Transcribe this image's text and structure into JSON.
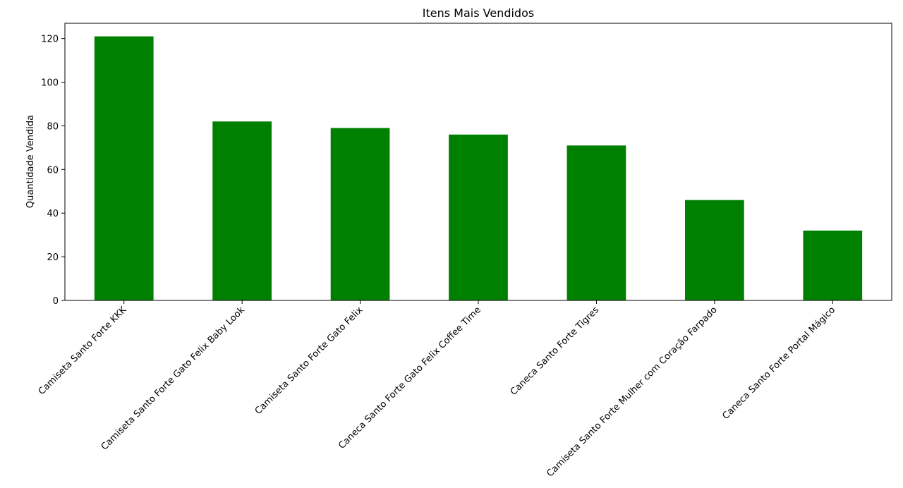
{
  "chart_data": {
    "type": "bar",
    "title": "Itens Mais Vendidos",
    "xlabel": "",
    "ylabel": "Quantidade Vendida",
    "categories": [
      "Camiseta Santo Forte KKK",
      "Camiseta Santo Forte Gato Felix Baby Look",
      "Camiseta Santo Forte Gato Felix",
      "Caneca Santo Forte Gato Felix Coffee Time",
      "Caneca Santo Forte Tigres",
      "Camiseta Santo Forte Mulher com Coração Farpado",
      "Caneca Santo Forte Portal Mágico"
    ],
    "values": [
      121,
      82,
      79,
      76,
      71,
      46,
      32
    ],
    "ylim": [
      0,
      127
    ],
    "yticks": [
      0,
      20,
      40,
      60,
      80,
      100,
      120
    ],
    "bar_color": "#008000",
    "grid": false,
    "legend": "none"
  }
}
